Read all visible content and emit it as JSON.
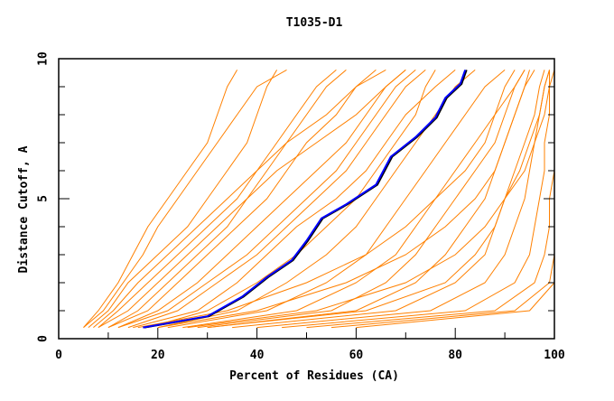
{
  "chart_data": {
    "type": "line",
    "title": "T1035-D1",
    "xlabel": "Percent of Residues (CA)",
    "ylabel": "Distance Cutoff, A",
    "xlim": [
      0,
      100
    ],
    "ylim": [
      0,
      10
    ],
    "x_ticks": [
      "0",
      "20",
      "40",
      "60",
      "80",
      "100"
    ],
    "y_ticks": [
      "0",
      "5",
      "10"
    ],
    "grid": false,
    "colors": {
      "models": "#ff8000",
      "highlight": "#0000ff",
      "highlight_outline": "#000000"
    },
    "cutoff_levels": [
      0.4,
      1,
      2,
      3,
      4,
      5,
      6,
      7,
      8,
      9,
      9.6
    ],
    "model_series_x": [
      [
        5,
        8,
        12,
        15,
        18,
        22,
        26,
        30,
        32,
        34,
        36
      ],
      [
        6,
        10,
        14,
        20,
        26,
        30,
        34,
        38,
        40,
        42,
        44
      ],
      [
        8,
        12,
        18,
        24,
        30,
        36,
        40,
        44,
        48,
        52,
        56
      ],
      [
        10,
        16,
        22,
        28,
        34,
        38,
        42,
        46,
        50,
        54,
        58
      ],
      [
        12,
        20,
        28,
        34,
        40,
        46,
        52,
        58,
        62,
        66,
        70
      ],
      [
        14,
        24,
        32,
        40,
        46,
        52,
        58,
        62,
        66,
        70,
        74
      ],
      [
        18,
        30,
        40,
        48,
        54,
        60,
        64,
        68,
        72,
        74,
        76
      ],
      [
        20,
        36,
        46,
        54,
        60,
        64,
        68,
        72,
        76,
        80,
        84
      ],
      [
        22,
        42,
        54,
        62,
        66,
        70,
        74,
        78,
        82,
        86,
        90
      ],
      [
        25,
        48,
        60,
        68,
        72,
        76,
        80,
        84,
        88,
        92,
        94
      ],
      [
        28,
        55,
        66,
        72,
        76,
        80,
        84,
        88,
        90,
        92,
        94
      ],
      [
        30,
        60,
        72,
        78,
        82,
        86,
        88,
        90,
        92,
        94,
        95
      ],
      [
        35,
        68,
        80,
        86,
        88,
        90,
        92,
        94,
        96,
        97,
        98
      ],
      [
        40,
        75,
        86,
        90,
        92,
        94,
        95,
        96,
        97,
        98,
        99
      ],
      [
        45,
        82,
        92,
        95,
        96,
        97,
        98,
        98,
        99,
        99,
        99
      ],
      [
        50,
        88,
        96,
        98,
        99,
        99,
        100,
        100,
        100,
        100,
        100
      ],
      [
        55,
        92,
        99,
        100,
        100,
        100,
        100,
        100,
        100,
        100,
        100
      ],
      [
        60,
        95,
        100,
        100,
        100,
        100,
        100,
        100,
        100,
        100,
        100
      ],
      [
        8,
        14,
        20,
        26,
        32,
        38,
        44,
        52,
        60,
        66,
        70
      ],
      [
        15,
        28,
        36,
        42,
        48,
        56,
        62,
        66,
        70,
        76,
        80
      ],
      [
        20,
        40,
        58,
        70,
        78,
        84,
        88,
        90,
        92,
        94,
        96
      ],
      [
        10,
        18,
        24,
        30,
        36,
        42,
        46,
        50,
        56,
        60,
        64
      ],
      [
        30,
        62,
        78,
        84,
        88,
        90,
        94,
        96,
        98,
        99,
        100
      ],
      [
        7,
        11,
        16,
        22,
        28,
        34,
        40,
        46,
        54,
        60,
        66
      ],
      [
        12,
        22,
        30,
        38,
        44,
        50,
        56,
        60,
        64,
        68,
        72
      ],
      [
        5,
        9,
        13,
        17,
        20,
        24,
        28,
        32,
        36,
        40,
        46
      ],
      [
        16,
        34,
        50,
        62,
        70,
        76,
        82,
        86,
        88,
        90,
        92
      ],
      [
        26,
        52,
        70,
        80,
        86,
        90,
        93,
        95,
        97,
        98,
        99
      ]
    ],
    "highlight_series": {
      "x": [
        17,
        30,
        37,
        42,
        47,
        50,
        53,
        58,
        64,
        67,
        72,
        76,
        78,
        81,
        82
      ],
      "y": [
        0.4,
        0.8,
        1.5,
        2.2,
        2.8,
        3.5,
        4.3,
        4.8,
        5.5,
        6.5,
        7.2,
        7.9,
        8.6,
        9.1,
        9.6
      ]
    }
  }
}
